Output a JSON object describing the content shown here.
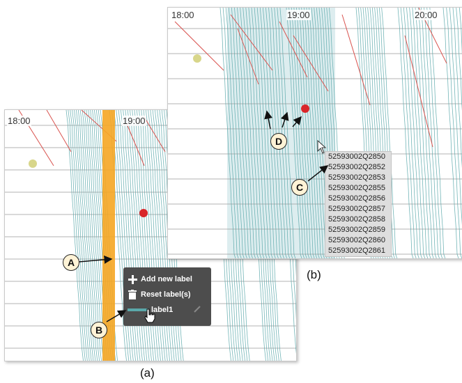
{
  "panel_a": {
    "time_labels": [
      "18:00",
      "19:00"
    ],
    "menu": {
      "add_label": "Add new label",
      "reset_label": "Reset label(s)",
      "label_item": "label1"
    }
  },
  "panel_b": {
    "time_labels": [
      "18:00",
      "19:00",
      "20:00"
    ],
    "tooltip_ids": [
      "52593002Q2850",
      "52593002Q2852",
      "52593002Q2853",
      "52593002Q2855",
      "52593002Q2856",
      "52593002Q2857",
      "52593002Q2858",
      "52593002Q2859",
      "52593002Q2860",
      "52593002Q2861"
    ]
  },
  "callouts": {
    "a": "A",
    "b": "B",
    "c": "C",
    "d": "D"
  },
  "captions": {
    "a": "(a)",
    "b": "(b)"
  },
  "colors": {
    "teal": "#5aa8aa",
    "red": "#d9534f",
    "orange": "#f5a623",
    "highlight": "#cfe6e8",
    "dot_red": "#d9262a",
    "dot_yellow": "#d8d68a"
  }
}
